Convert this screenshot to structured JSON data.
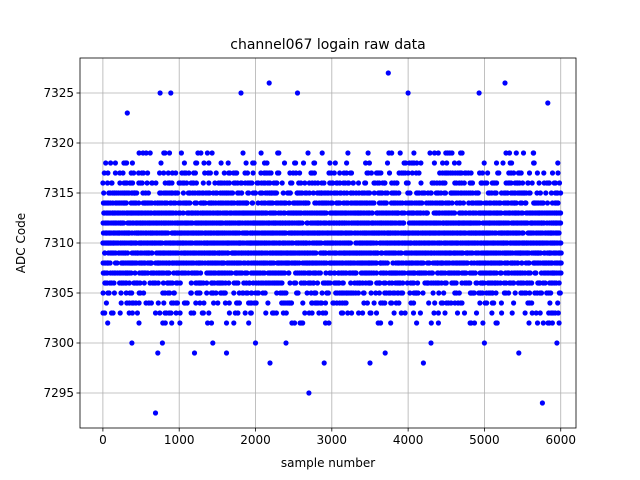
{
  "chart_data": {
    "type": "scatter",
    "title": "channel067 logain raw data",
    "xlabel": "sample number",
    "ylabel": "ADC Code",
    "xlim": [
      -300,
      6200
    ],
    "ylim": [
      7291.5,
      7328.5
    ],
    "xticks": [
      0,
      1000,
      2000,
      3000,
      4000,
      5000,
      6000
    ],
    "yticks": [
      7295,
      7300,
      7305,
      7310,
      7315,
      7320,
      7325
    ],
    "grid": true,
    "marker_color": "#0000ff",
    "n_samples": 6000,
    "integer_values": true,
    "dense_band": [
      7302,
      7319
    ],
    "outliers": [
      {
        "x": 320,
        "y": 7323
      },
      {
        "x": 380,
        "y": 7300
      },
      {
        "x": 690,
        "y": 7293
      },
      {
        "x": 750,
        "y": 7325
      },
      {
        "x": 720,
        "y": 7299
      },
      {
        "x": 780,
        "y": 7300
      },
      {
        "x": 890,
        "y": 7325
      },
      {
        "x": 1200,
        "y": 7299
      },
      {
        "x": 1440,
        "y": 7300
      },
      {
        "x": 1620,
        "y": 7299
      },
      {
        "x": 1810,
        "y": 7325
      },
      {
        "x": 2000,
        "y": 7300
      },
      {
        "x": 2180,
        "y": 7326
      },
      {
        "x": 2190,
        "y": 7298
      },
      {
        "x": 2400,
        "y": 7300
      },
      {
        "x": 2550,
        "y": 7325
      },
      {
        "x": 2700,
        "y": 7295
      },
      {
        "x": 2900,
        "y": 7298
      },
      {
        "x": 3500,
        "y": 7298
      },
      {
        "x": 3700,
        "y": 7299
      },
      {
        "x": 3740,
        "y": 7327
      },
      {
        "x": 4000,
        "y": 7325
      },
      {
        "x": 4200,
        "y": 7298
      },
      {
        "x": 4300,
        "y": 7300
      },
      {
        "x": 4930,
        "y": 7325
      },
      {
        "x": 5000,
        "y": 7300
      },
      {
        "x": 5270,
        "y": 7326
      },
      {
        "x": 5450,
        "y": 7299
      },
      {
        "x": 5760,
        "y": 7294
      },
      {
        "x": 5830,
        "y": 7324
      },
      {
        "x": 5950,
        "y": 7300
      }
    ]
  }
}
